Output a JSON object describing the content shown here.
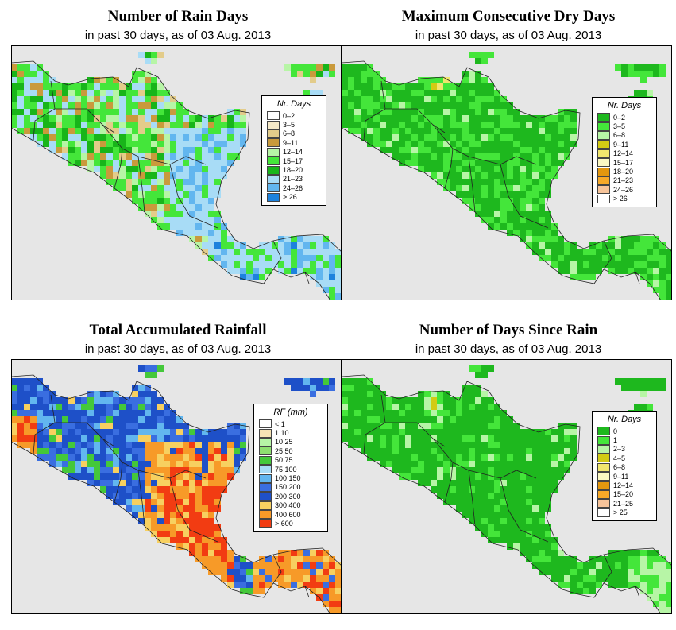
{
  "panels": [
    {
      "id": "rain-days",
      "title": "Number of Rain Days",
      "subtitle": "in past 30 days, as of  03 Aug. 2013",
      "legend_title": "Nr. Days",
      "legend": [
        {
          "label": "0–2",
          "color": "#ffffff"
        },
        {
          "label": "3–5",
          "color": "#f5e9c8"
        },
        {
          "label": "6–8",
          "color": "#e3cc8a"
        },
        {
          "label": "9–11",
          "color": "#c99a3c"
        },
        {
          "label": "12–14",
          "color": "#b7f5a6"
        },
        {
          "label": "15–17",
          "color": "#44e63a"
        },
        {
          "label": "18–20",
          "color": "#18b51a"
        },
        {
          "label": "21–23",
          "color": "#a8dcf6"
        },
        {
          "label": "24–26",
          "color": "#62b6ef"
        },
        {
          "label": "> 26",
          "color": "#1d82dd"
        }
      ]
    },
    {
      "id": "dry-days",
      "title": "Maximum Consecutive Dry Days",
      "subtitle": "in past 30 days, as of  03 Aug. 2013",
      "legend_title": "Nr. Days",
      "legend": [
        {
          "label": "0–2",
          "color": "#1eb81e"
        },
        {
          "label": "3–5",
          "color": "#44e63a"
        },
        {
          "label": "6–8",
          "color": "#b7f5a6"
        },
        {
          "label": "9–11",
          "color": "#d3cb14"
        },
        {
          "label": "12–14",
          "color": "#f1e66e"
        },
        {
          "label": "15–17",
          "color": "#fbf8c2"
        },
        {
          "label": "18–20",
          "color": "#e3970e"
        },
        {
          "label": "21–23",
          "color": "#f7a928"
        },
        {
          "label": "24–26",
          "color": "#f7c49a"
        },
        {
          "label": "> 26",
          "color": "#ffffff"
        }
      ]
    },
    {
      "id": "rainfall",
      "title": "Total Accumulated Rainfall",
      "subtitle": "in past 30 days, as of  03 Aug. 2013",
      "legend_title": "RF (mm)",
      "legend": [
        {
          "label": "< 1",
          "color": "#ffffff"
        },
        {
          "label": "1   10",
          "color": "#f5e1b4"
        },
        {
          "label": "10   25",
          "color": "#b7f5a6"
        },
        {
          "label": "25   50",
          "color": "#8ee070"
        },
        {
          "label": "50   75",
          "color": "#44c83a"
        },
        {
          "label": "75   100",
          "color": "#a8dcf6"
        },
        {
          "label": "100   150",
          "color": "#62b6ef"
        },
        {
          "label": "150   200",
          "color": "#3a6ee0"
        },
        {
          "label": "200   300",
          "color": "#1e50c8"
        },
        {
          "label": "300   400",
          "color": "#f7d060"
        },
        {
          "label": "400   600",
          "color": "#f79a28"
        },
        {
          "label": "> 600",
          "color": "#f23c12"
        }
      ]
    },
    {
      "id": "days-since",
      "title": "Number of Days Since Rain",
      "subtitle": "in past 30 days, as of  03 Aug. 2013",
      "legend_title": "Nr. Days",
      "legend": [
        {
          "label": "0",
          "color": "#1eb81e"
        },
        {
          "label": "1",
          "color": "#44e63a"
        },
        {
          "label": "2–3",
          "color": "#b7f5a6"
        },
        {
          "label": "4–5",
          "color": "#d3cb14"
        },
        {
          "label": "6–8",
          "color": "#f1e66e"
        },
        {
          "label": "9–11",
          "color": "#fbf8c2"
        },
        {
          "label": "12–14",
          "color": "#e3970e"
        },
        {
          "label": "15–20",
          "color": "#f7a928"
        },
        {
          "label": "21–25",
          "color": "#f7c49a"
        },
        {
          "label": "> 25",
          "color": "#ffffff"
        }
      ]
    }
  ]
}
